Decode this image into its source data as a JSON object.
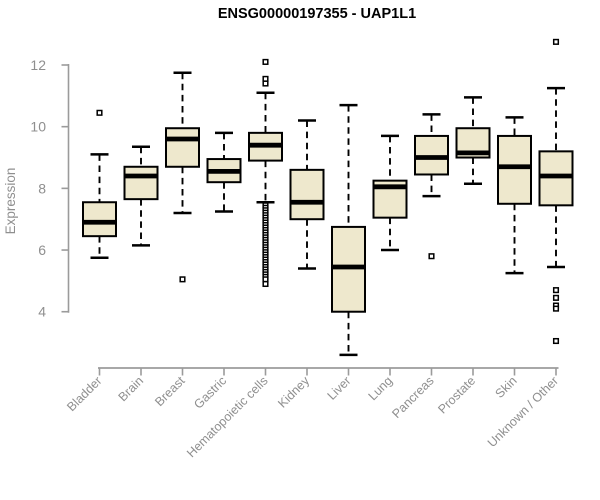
{
  "title": "ENSG00000197355 - UAP1L1",
  "chart_data": {
    "type": "boxplot",
    "title": "ENSG00000197355 - UAP1L1",
    "xlabel": "",
    "ylabel": "Expression",
    "yticks": [
      4,
      6,
      8,
      10,
      12
    ],
    "ylim": [
      4,
      12
    ],
    "grid": false,
    "legend": "none",
    "colors": {
      "box_fill": "#EEE8CD",
      "box_stroke": "#000000",
      "median": "#000000",
      "axis_line": "#9b9b9b",
      "axis_text": "#8f8f8f",
      "title_text": "#000000",
      "background": "#ffffff"
    },
    "categories": [
      "Bladder",
      "Brain",
      "Breast",
      "Gastric",
      "Hematopoietic cells",
      "Kidney",
      "Liver",
      "Lung",
      "Pancreas",
      "Prostate",
      "Skin",
      "Unknown / Other"
    ],
    "boxes": [
      {
        "category": "Bladder",
        "whisker_low": 5.75,
        "q1": 6.45,
        "median": 6.9,
        "q3": 7.55,
        "whisker_high": 9.1,
        "outliers": [
          10.45
        ]
      },
      {
        "category": "Brain",
        "whisker_low": 6.15,
        "q1": 7.65,
        "median": 8.4,
        "q3": 8.7,
        "whisker_high": 9.35,
        "outliers": []
      },
      {
        "category": "Breast",
        "whisker_low": 7.2,
        "q1": 8.7,
        "median": 9.6,
        "q3": 9.95,
        "whisker_high": 11.75,
        "outliers": [
          5.05
        ]
      },
      {
        "category": "Gastric",
        "whisker_low": 7.25,
        "q1": 8.2,
        "median": 8.55,
        "q3": 8.95,
        "whisker_high": 9.8,
        "outliers": []
      },
      {
        "category": "Hematopoietic cells",
        "whisker_low": 7.55,
        "q1": 8.9,
        "median": 9.4,
        "q3": 9.8,
        "whisker_high": 11.1,
        "outliers": [
          12.1,
          11.55,
          11.4,
          7.45,
          7.37,
          7.29,
          7.21,
          7.13,
          7.05,
          6.97,
          6.89,
          6.81,
          6.73,
          6.65,
          6.57,
          6.49,
          6.41,
          6.33,
          6.25,
          6.17,
          6.09,
          6.01,
          5.93,
          5.85,
          5.77,
          5.69,
          5.61,
          5.53,
          5.45,
          5.37,
          5.29,
          5.21,
          5.13,
          5.05,
          4.9
        ]
      },
      {
        "category": "Kidney",
        "whisker_low": 5.4,
        "q1": 7.0,
        "median": 7.55,
        "q3": 8.6,
        "whisker_high": 10.2,
        "outliers": []
      },
      {
        "category": "Liver",
        "whisker_low": 2.6,
        "q1": 4.0,
        "median": 5.45,
        "q3": 6.75,
        "whisker_high": 10.7,
        "outliers": []
      },
      {
        "category": "Lung",
        "whisker_low": 6.0,
        "q1": 7.05,
        "median": 8.05,
        "q3": 8.25,
        "whisker_high": 9.7,
        "outliers": []
      },
      {
        "category": "Pancreas",
        "whisker_low": 7.75,
        "q1": 8.45,
        "median": 9.0,
        "q3": 9.7,
        "whisker_high": 10.4,
        "outliers": [
          5.8
        ]
      },
      {
        "category": "Prostate",
        "whisker_low": 8.15,
        "q1": 9.0,
        "median": 9.15,
        "q3": 9.95,
        "whisker_high": 10.95,
        "outliers": []
      },
      {
        "category": "Skin",
        "whisker_low": 5.25,
        "q1": 7.5,
        "median": 8.7,
        "q3": 9.7,
        "whisker_high": 10.3,
        "outliers": []
      },
      {
        "category": "Unknown / Other",
        "whisker_low": 5.45,
        "q1": 7.45,
        "median": 8.4,
        "q3": 9.2,
        "whisker_high": 11.25,
        "outliers": [
          12.75,
          4.7,
          4.45,
          4.2,
          4.1,
          3.05
        ]
      }
    ]
  }
}
